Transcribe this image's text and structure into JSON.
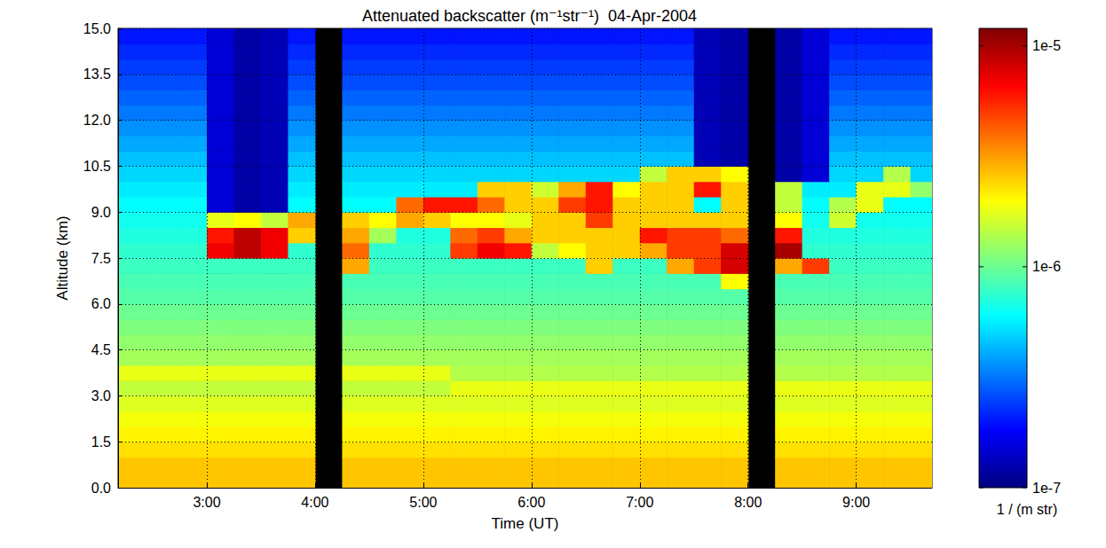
{
  "chart_data": {
    "type": "heatmap",
    "title": "Attenuated backscatter (m⁻¹str⁻¹)  04-Apr-2004",
    "x_label": "Time (UT)",
    "y_label": "Altitude (km)",
    "xlim": [
      2.18,
      9.7
    ],
    "xticks": [
      {
        "value": 3,
        "label": "3:00"
      },
      {
        "value": 4,
        "label": "4:00"
      },
      {
        "value": 5,
        "label": "5:00"
      },
      {
        "value": 6,
        "label": "6:00"
      },
      {
        "value": 7,
        "label": "7:00"
      },
      {
        "value": 8,
        "label": "8:00"
      },
      {
        "value": 9,
        "label": "9:00"
      }
    ],
    "ylim": [
      0,
      15
    ],
    "yticks": [
      {
        "value": 0,
        "label": "0.0"
      },
      1.5,
      {
        "value": 3,
        "label": "3.0"
      },
      4.5,
      {
        "value": 6,
        "label": "6.0"
      },
      7.5,
      {
        "value": 9,
        "label": "9.0"
      },
      10.5,
      {
        "value": 12,
        "label": "12.0"
      },
      13.5,
      {
        "value": 15,
        "label": "15.0"
      }
    ],
    "grid": true,
    "x_bins": [
      2,
      2.25,
      2.5,
      2.75,
      3,
      3.25,
      3.5,
      3.75,
      4,
      4.25,
      4.5,
      4.75,
      5,
      5.25,
      5.5,
      5.75,
      6,
      6.25,
      6.5,
      6.75,
      7,
      7.25,
      7.5,
      7.75,
      8,
      8.25,
      8.5,
      8.75,
      9,
      9.25,
      9.5,
      9.75
    ],
    "y_bins": [
      0,
      0.5,
      1,
      1.5,
      2,
      2.5,
      3,
      3.5,
      4,
      4.5,
      5,
      5.5,
      6,
      6.5,
      7,
      7.5,
      8,
      8.5,
      9,
      9.5,
      10,
      10.5,
      11,
      11.5,
      12,
      12.5,
      13,
      13.5,
      14,
      14.5,
      15
    ],
    "cells": [
      [
        2.6e-06,
        2.6e-06,
        2.6e-06,
        2.6e-06,
        2.6e-06,
        2.6e-06,
        2.6e-06,
        2.6e-06,
        null,
        2.6e-06,
        2.6e-06,
        2.6e-06,
        2.6e-06,
        2.6e-06,
        2.6e-06,
        2.6e-06,
        2.6e-06,
        2.6e-06,
        2.6e-06,
        2.6e-06,
        2.6e-06,
        2.6e-06,
        2.6e-06,
        2.6e-06,
        null,
        2.6e-06,
        2.6e-06,
        2.6e-06,
        2.6e-06,
        2.6e-06,
        2.6e-06
      ],
      [
        2.6e-06,
        2.6e-06,
        2.6e-06,
        2.6e-06,
        2.6e-06,
        2.6e-06,
        2.6e-06,
        2.6e-06,
        null,
        2.6e-06,
        2.6e-06,
        2.6e-06,
        2.6e-06,
        2.6e-06,
        2.6e-06,
        2.6e-06,
        2.6e-06,
        2.6e-06,
        2.6e-06,
        2.6e-06,
        2.6e-06,
        2.6e-06,
        2.6e-06,
        2.6e-06,
        null,
        2.6e-06,
        2.6e-06,
        2.6e-06,
        2.6e-06,
        2.6e-06,
        2.6e-06
      ],
      [
        2.3e-06,
        2.3e-06,
        2.3e-06,
        2.3e-06,
        2.3e-06,
        2.3e-06,
        2.3e-06,
        2.3e-06,
        null,
        2.3e-06,
        2.3e-06,
        2.3e-06,
        2.3e-06,
        2.3e-06,
        2.3e-06,
        2.3e-06,
        2.3e-06,
        2.3e-06,
        2.3e-06,
        2.3e-06,
        2.3e-06,
        2.3e-06,
        2.3e-06,
        2.3e-06,
        null,
        2.3e-06,
        2.3e-06,
        2.3e-06,
        2.3e-06,
        2.3e-06,
        2.3e-06
      ],
      [
        2.1e-06,
        2.1e-06,
        2.1e-06,
        2.1e-06,
        2.1e-06,
        2.1e-06,
        2.1e-06,
        2.1e-06,
        null,
        2.1e-06,
        2.1e-06,
        2.1e-06,
        2.1e-06,
        2.1e-06,
        2.1e-06,
        2.1e-06,
        2.1e-06,
        2.1e-06,
        2.1e-06,
        2.1e-06,
        2.1e-06,
        2.1e-06,
        2.1e-06,
        2.1e-06,
        null,
        2.1e-06,
        2.1e-06,
        2.1e-06,
        2.1e-06,
        2.1e-06,
        2.1e-06
      ],
      [
        1.9e-06,
        1.9e-06,
        1.9e-06,
        1.9e-06,
        1.9e-06,
        1.9e-06,
        1.9e-06,
        1.9e-06,
        null,
        1.9e-06,
        1.9e-06,
        1.9e-06,
        1.9e-06,
        1.9e-06,
        1.9e-06,
        1.9e-06,
        1.9e-06,
        1.9e-06,
        1.9e-06,
        1.9e-06,
        1.9e-06,
        1.9e-06,
        1.9e-06,
        1.9e-06,
        null,
        1.9e-06,
        1.9e-06,
        1.9e-06,
        1.9e-06,
        1.9e-06,
        1.9e-06
      ],
      [
        1.7e-06,
        1.7e-06,
        1.7e-06,
        1.7e-06,
        1.7e-06,
        1.7e-06,
        1.7e-06,
        1.7e-06,
        null,
        1.7e-06,
        1.7e-06,
        1.7e-06,
        1.7e-06,
        1.7e-06,
        1.7e-06,
        1.7e-06,
        1.7e-06,
        1.7e-06,
        1.7e-06,
        1.7e-06,
        1.7e-06,
        1.7e-06,
        1.7e-06,
        1.7e-06,
        null,
        1.7e-06,
        1.7e-06,
        1.7e-06,
        1.7e-06,
        1.7e-06,
        1.7e-06
      ],
      [
        1.5e-06,
        1.5e-06,
        1.5e-06,
        1.5e-06,
        1.5e-06,
        1.5e-06,
        1.5e-06,
        1.5e-06,
        null,
        1.5e-06,
        1.5e-06,
        1.5e-06,
        1.5e-06,
        1.8e-06,
        1.8e-06,
        1.8e-06,
        1.8e-06,
        1.8e-06,
        1.8e-06,
        1.8e-06,
        1.8e-06,
        1.8e-06,
        1.8e-06,
        1.8e-06,
        null,
        1.8e-06,
        1.8e-06,
        1.8e-06,
        1.8e-06,
        1.8e-06,
        1.8e-06
      ],
      [
        1.8e-06,
        1.8e-06,
        1.8e-06,
        1.8e-06,
        1.8e-06,
        1.8e-06,
        1.8e-06,
        1.8e-06,
        null,
        1.8e-06,
        1.8e-06,
        1.8e-06,
        1.8e-06,
        1.4e-06,
        1.4e-06,
        1.4e-06,
        1.4e-06,
        1.4e-06,
        1.4e-06,
        1.4e-06,
        1.4e-06,
        1.4e-06,
        1.4e-06,
        1.4e-06,
        null,
        1.4e-06,
        1.4e-06,
        1.4e-06,
        1.4e-06,
        1.4e-06,
        1.4e-06
      ],
      [
        1.3e-06,
        1.3e-06,
        1.3e-06,
        1.3e-06,
        1.3e-06,
        1.3e-06,
        1.3e-06,
        1.3e-06,
        null,
        1.3e-06,
        1.3e-06,
        1.3e-06,
        1.3e-06,
        1.3e-06,
        1.3e-06,
        1.3e-06,
        1.3e-06,
        1.3e-06,
        1.3e-06,
        1.3e-06,
        1.3e-06,
        1.3e-06,
        1.3e-06,
        1.3e-06,
        null,
        1.3e-06,
        1.3e-06,
        1.3e-06,
        1.3e-06,
        1.3e-06,
        1.3e-06
      ],
      [
        1.2e-06,
        1.2e-06,
        1.2e-06,
        1.2e-06,
        1.2e-06,
        1.2e-06,
        1.2e-06,
        1.2e-06,
        null,
        1.2e-06,
        1.2e-06,
        1.2e-06,
        1.2e-06,
        1.2e-06,
        1.2e-06,
        1.2e-06,
        1.2e-06,
        1.2e-06,
        1.2e-06,
        1.2e-06,
        1.2e-06,
        1.2e-06,
        1.2e-06,
        1.2e-06,
        null,
        1.2e-06,
        1.2e-06,
        1.2e-06,
        1.2e-06,
        1.2e-06,
        1.2e-06
      ],
      [
        1.1e-06,
        1.1e-06,
        1.1e-06,
        1.1e-06,
        1.1e-06,
        1.1e-06,
        1.1e-06,
        1.1e-06,
        null,
        1.1e-06,
        1.1e-06,
        1.1e-06,
        1.1e-06,
        1.1e-06,
        1.1e-06,
        1.1e-06,
        1.1e-06,
        1.1e-06,
        1.1e-06,
        1.1e-06,
        1.1e-06,
        1.1e-06,
        1.1e-06,
        1.1e-06,
        null,
        1.1e-06,
        1.1e-06,
        1.1e-06,
        1.1e-06,
        1.1e-06,
        1.1e-06
      ],
      [
        1e-06,
        1e-06,
        1e-06,
        1e-06,
        1e-06,
        1e-06,
        1e-06,
        1e-06,
        null,
        1e-06,
        1e-06,
        1e-06,
        1e-06,
        1e-06,
        1e-06,
        1e-06,
        1e-06,
        1e-06,
        1e-06,
        1e-06,
        1e-06,
        1e-06,
        1e-06,
        1e-06,
        null,
        1e-06,
        1e-06,
        1e-06,
        1e-06,
        1e-06,
        1e-06
      ],
      [
        9e-07,
        9e-07,
        9e-07,
        9e-07,
        9e-07,
        9e-07,
        9e-07,
        9e-07,
        null,
        9e-07,
        9e-07,
        9e-07,
        9e-07,
        9e-07,
        9e-07,
        9e-07,
        9e-07,
        9e-07,
        9e-07,
        9e-07,
        9e-07,
        9e-07,
        9e-07,
        9e-07,
        null,
        9e-07,
        9e-07,
        9e-07,
        9e-07,
        9e-07,
        9e-07
      ],
      [
        8.5e-07,
        8.5e-07,
        8.5e-07,
        8.5e-07,
        8.5e-07,
        8.5e-07,
        8.5e-07,
        8.5e-07,
        null,
        8.5e-07,
        8.5e-07,
        8.5e-07,
        8.5e-07,
        8.5e-07,
        8.5e-07,
        8.5e-07,
        8.5e-07,
        8.5e-07,
        8.5e-07,
        8.5e-07,
        8.5e-07,
        8.5e-07,
        8.5e-07,
        2e-06,
        null,
        8.5e-07,
        8.5e-07,
        8.5e-07,
        8.5e-07,
        8.5e-07,
        8.5e-07
      ],
      [
        8e-07,
        8e-07,
        8e-07,
        8e-07,
        8e-07,
        8e-07,
        8e-07,
        8e-07,
        null,
        3e-06,
        8e-07,
        8e-07,
        8e-07,
        8e-07,
        8e-07,
        8e-07,
        8e-07,
        8e-07,
        2.5e-06,
        8e-07,
        8e-07,
        3e-06,
        5e-06,
        8e-06,
        null,
        3e-06,
        5e-06,
        8e-07,
        8e-07,
        8e-07,
        8e-07
      ],
      [
        7.5e-07,
        7.5e-07,
        7.5e-07,
        7.5e-07,
        7e-06,
        9e-06,
        7e-06,
        7.5e-07,
        null,
        4e-06,
        7.5e-07,
        7.5e-07,
        7.5e-07,
        5e-06,
        7e-06,
        6e-06,
        1.5e-06,
        2e-06,
        2.5e-06,
        2.5e-06,
        3e-06,
        5e-06,
        5e-06,
        8e-06,
        null,
        1e-05,
        7.5e-07,
        7.5e-07,
        7.5e-07,
        7.5e-07,
        7.5e-07
      ],
      [
        7e-07,
        7e-07,
        7e-07,
        7e-07,
        6e-06,
        9e-06,
        7e-06,
        2.5e-06,
        null,
        3e-06,
        1.3e-06,
        7e-07,
        7e-07,
        4e-06,
        5e-06,
        3e-06,
        2.5e-06,
        2.5e-06,
        2.5e-06,
        2.5e-06,
        6e-06,
        5e-06,
        5e-06,
        4e-06,
        null,
        6e-06,
        7e-07,
        7e-07,
        7e-07,
        7e-07,
        7e-07
      ],
      [
        6.5e-07,
        6.5e-07,
        6.5e-07,
        6.5e-07,
        1.8e-06,
        2e-06,
        1.5e-06,
        3e-06,
        null,
        2.5e-06,
        2e-06,
        3e-06,
        2.5e-06,
        2e-06,
        2e-06,
        1.8e-06,
        2.5e-06,
        2.5e-06,
        5e-06,
        2.5e-06,
        2.5e-06,
        2.5e-06,
        2.5e-06,
        2.5e-06,
        null,
        2e-06,
        6.5e-07,
        1.6e-06,
        6.5e-07,
        6.5e-07,
        6.5e-07
      ],
      [
        6e-07,
        6e-07,
        6e-07,
        6e-07,
        1.5e-07,
        1.2e-07,
        1.3e-07,
        6e-07,
        null,
        6e-07,
        6e-07,
        4e-06,
        6e-06,
        6e-06,
        4e-06,
        2.5e-06,
        2.5e-06,
        5e-06,
        6e-06,
        2.5e-06,
        2.5e-06,
        2.5e-06,
        6e-07,
        2.5e-06,
        null,
        1.5e-06,
        6e-07,
        1.4e-06,
        1.8e-06,
        6e-07,
        6e-07
      ],
      [
        5.5e-07,
        5.5e-07,
        5.5e-07,
        5.5e-07,
        1.5e-07,
        1.2e-07,
        1.3e-07,
        5.5e-07,
        null,
        5.5e-07,
        5.5e-07,
        5.5e-07,
        5.5e-07,
        5.5e-07,
        2.5e-06,
        2.5e-06,
        1.6e-06,
        3e-06,
        6e-06,
        2e-06,
        2.5e-06,
        2.5e-06,
        6e-06,
        2.5e-06,
        null,
        1.5e-06,
        5.5e-07,
        5.5e-07,
        1.8e-06,
        1.8e-06,
        1.2e-06
      ],
      [
        5e-07,
        5e-07,
        5e-07,
        5e-07,
        1.5e-07,
        1.2e-07,
        1.3e-07,
        5e-07,
        null,
        5e-07,
        5e-07,
        5e-07,
        5e-07,
        5e-07,
        5e-07,
        5e-07,
        5e-07,
        5e-07,
        5e-07,
        5e-07,
        1.5e-06,
        2.5e-06,
        2.5e-06,
        2e-06,
        null,
        1.2e-07,
        1.5e-07,
        5e-07,
        5e-07,
        1.4e-06,
        5e-07
      ],
      [
        4.5e-07,
        4.5e-07,
        4.5e-07,
        4.5e-07,
        1.5e-07,
        1.2e-07,
        1.3e-07,
        4.5e-07,
        null,
        4.5e-07,
        4.5e-07,
        4.5e-07,
        4.5e-07,
        4.5e-07,
        4.5e-07,
        4.5e-07,
        4.5e-07,
        4.5e-07,
        4.5e-07,
        4.5e-07,
        4.5e-07,
        4.5e-07,
        1.3e-07,
        1.2e-07,
        null,
        1.2e-07,
        1.5e-07,
        4.5e-07,
        4.5e-07,
        4.5e-07,
        4.5e-07
      ],
      [
        4e-07,
        4e-07,
        4e-07,
        4e-07,
        1.5e-07,
        1.2e-07,
        1.3e-07,
        4e-07,
        null,
        4e-07,
        4e-07,
        4e-07,
        4e-07,
        4e-07,
        4e-07,
        4e-07,
        4e-07,
        4e-07,
        4e-07,
        4e-07,
        4e-07,
        4e-07,
        1.3e-07,
        1.2e-07,
        null,
        1.2e-07,
        1.5e-07,
        4e-07,
        4e-07,
        4e-07,
        4e-07
      ],
      [
        3.6e-07,
        3.6e-07,
        3.6e-07,
        3.6e-07,
        1.5e-07,
        1.2e-07,
        1.3e-07,
        3.6e-07,
        null,
        3.6e-07,
        3.6e-07,
        3.6e-07,
        3.6e-07,
        3.6e-07,
        3.6e-07,
        3.6e-07,
        3.6e-07,
        3.6e-07,
        3.6e-07,
        3.6e-07,
        3.6e-07,
        3.6e-07,
        1.3e-07,
        1.2e-07,
        null,
        1.2e-07,
        1.5e-07,
        3.6e-07,
        3.6e-07,
        3.6e-07,
        3.6e-07
      ],
      [
        3.2e-07,
        3.2e-07,
        3.2e-07,
        3.2e-07,
        1.5e-07,
        1.2e-07,
        1.3e-07,
        3.2e-07,
        null,
        3.2e-07,
        3.2e-07,
        3.2e-07,
        3.2e-07,
        3.2e-07,
        3.2e-07,
        3.2e-07,
        3.2e-07,
        3.2e-07,
        3.2e-07,
        3.2e-07,
        3.2e-07,
        3.2e-07,
        1.3e-07,
        1.2e-07,
        null,
        1.2e-07,
        1.5e-07,
        3.2e-07,
        3.2e-07,
        3.2e-07,
        3.2e-07
      ],
      [
        2.9e-07,
        2.9e-07,
        2.9e-07,
        2.9e-07,
        1.5e-07,
        1.2e-07,
        1.3e-07,
        2.9e-07,
        null,
        2.9e-07,
        2.9e-07,
        2.9e-07,
        2.9e-07,
        2.9e-07,
        2.9e-07,
        2.9e-07,
        2.9e-07,
        2.9e-07,
        2.9e-07,
        2.9e-07,
        2.9e-07,
        2.9e-07,
        1.3e-07,
        1.2e-07,
        null,
        1.2e-07,
        1.5e-07,
        2.9e-07,
        2.9e-07,
        2.9e-07,
        2.9e-07
      ],
      [
        2.6e-07,
        2.6e-07,
        2.6e-07,
        2.6e-07,
        1.5e-07,
        1.2e-07,
        1.3e-07,
        2.6e-07,
        null,
        2.6e-07,
        2.6e-07,
        2.6e-07,
        2.6e-07,
        2.6e-07,
        2.6e-07,
        2.6e-07,
        2.6e-07,
        2.6e-07,
        2.6e-07,
        2.6e-07,
        2.6e-07,
        2.6e-07,
        1.3e-07,
        1.2e-07,
        null,
        1.2e-07,
        1.5e-07,
        2.6e-07,
        2.6e-07,
        2.6e-07,
        2.6e-07
      ],
      [
        2.4e-07,
        2.4e-07,
        2.4e-07,
        2.4e-07,
        1.5e-07,
        1.2e-07,
        1.3e-07,
        2.4e-07,
        null,
        2.4e-07,
        2.4e-07,
        2.4e-07,
        2.4e-07,
        2.4e-07,
        2.4e-07,
        2.4e-07,
        2.4e-07,
        2.4e-07,
        2.4e-07,
        2.4e-07,
        2.4e-07,
        2.4e-07,
        1.3e-07,
        1.2e-07,
        null,
        1.2e-07,
        1.5e-07,
        2.4e-07,
        2.4e-07,
        2.4e-07,
        2.4e-07
      ],
      [
        2.2e-07,
        2.2e-07,
        2.2e-07,
        2.2e-07,
        1.5e-07,
        1.2e-07,
        1.3e-07,
        2.2e-07,
        null,
        2.2e-07,
        2.2e-07,
        2.2e-07,
        2.2e-07,
        2.2e-07,
        2.2e-07,
        2.2e-07,
        2.2e-07,
        2.2e-07,
        2.2e-07,
        2.2e-07,
        2.2e-07,
        2.2e-07,
        1.3e-07,
        1.2e-07,
        null,
        1.2e-07,
        1.5e-07,
        2.2e-07,
        2.2e-07,
        2.2e-07,
        2.2e-07
      ],
      [
        2e-07,
        2e-07,
        2e-07,
        2e-07,
        1.5e-07,
        1.2e-07,
        1.3e-07,
        2e-07,
        null,
        2e-07,
        2e-07,
        2e-07,
        2e-07,
        2e-07,
        2e-07,
        2e-07,
        2e-07,
        2e-07,
        2e-07,
        2e-07,
        2e-07,
        2e-07,
        1.3e-07,
        1.2e-07,
        null,
        1.2e-07,
        1.5e-07,
        2e-07,
        2e-07,
        2e-07,
        2e-07
      ]
    ],
    "colorbar": {
      "lim": [
        1e-07,
        1.2e-05
      ],
      "ticks": [
        {
          "value": 1e-07,
          "label": "1e-7"
        },
        {
          "value": 1e-06,
          "label": "1e-6"
        },
        {
          "value": 1e-05,
          "label": "1e-5"
        }
      ],
      "label": "1 / (m str)",
      "log": true
    }
  }
}
